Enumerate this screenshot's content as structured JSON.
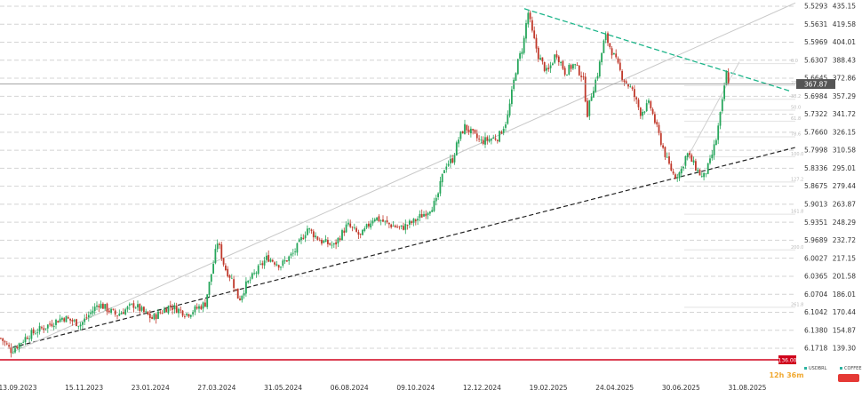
{
  "chart_data": {
    "type": "candlestick",
    "x_labels": [
      "13.09.2023",
      "15.11.2023",
      "23.01.2024",
      "27.03.2024",
      "31.05.2024",
      "06.08.2024",
      "09.10.2024",
      "12.12.2024",
      "19.02.2025",
      "24.04.2025",
      "30.06.2025",
      "31.08.2025"
    ],
    "y_ticks_right": [
      "435.15",
      "419.58",
      "404.01",
      "388.43",
      "372.86",
      "357.29",
      "341.72",
      "326.15",
      "310.58",
      "295.01",
      "279.44",
      "263.87",
      "248.29",
      "232.72",
      "217.15",
      "201.58",
      "186.01",
      "170.44",
      "154.87",
      "139.30"
    ],
    "y_ticks_left": [
      "5.5293",
      "5.5631",
      "5.5969",
      "5.6307",
      "5.6645",
      "5.6984",
      "5.7322",
      "5.7660",
      "5.7998",
      "5.8336",
      "5.8675",
      "5.9013",
      "5.9351",
      "5.9689",
      "6.0027",
      "6.0365",
      "6.0704",
      "6.1042",
      "6.1380",
      "6.1718"
    ],
    "ylim": [
      134.0,
      441.0
    ],
    "price_marker": {
      "value": 367.87,
      "label": "367.87"
    },
    "red_line": {
      "value": 136.0,
      "label": "136.00"
    },
    "legend": [
      {
        "label": "USDBRL",
        "color": "#2bb3a0"
      },
      {
        "label": "COFFEE",
        "color": "#2bb3a0"
      }
    ],
    "countdown": {
      "text": "12h 36m"
    },
    "fib_levels": [
      {
        "label": "0.0",
        "value": 385.5
      },
      {
        "label": "23.6",
        "value": 366.5
      },
      {
        "label": "38.2",
        "value": 354.7
      },
      {
        "label": "50.0",
        "value": 345.2
      },
      {
        "label": "61.8",
        "value": 335.7
      },
      {
        "label": "78.6",
        "value": 322.2
      },
      {
        "label": "100.0",
        "value": 305.0
      },
      {
        "label": "127.2",
        "value": 283.1
      },
      {
        "label": "161.8",
        "value": 255.2
      },
      {
        "label": "200.0",
        "value": 224.4
      },
      {
        "label": "261.8",
        "value": 174.7
      }
    ],
    "anchors": [
      [
        0,
        148
      ],
      [
        12,
        137
      ],
      [
        30,
        150
      ],
      [
        50,
        158
      ],
      [
        70,
        166
      ],
      [
        90,
        160
      ],
      [
        110,
        178
      ],
      [
        130,
        168
      ],
      [
        150,
        177
      ],
      [
        170,
        165
      ],
      [
        190,
        176
      ],
      [
        210,
        169
      ],
      [
        230,
        178
      ],
      [
        238,
        208
      ],
      [
        244,
        232
      ],
      [
        252,
        209
      ],
      [
        260,
        199
      ],
      [
        268,
        181
      ],
      [
        276,
        194
      ],
      [
        286,
        204
      ],
      [
        300,
        218
      ],
      [
        315,
        211
      ],
      [
        330,
        222
      ],
      [
        345,
        243
      ],
      [
        360,
        232
      ],
      [
        375,
        228
      ],
      [
        390,
        246
      ],
      [
        405,
        236
      ],
      [
        420,
        253
      ],
      [
        435,
        247
      ],
      [
        450,
        243
      ],
      [
        465,
        249
      ],
      [
        480,
        258
      ],
      [
        490,
        266
      ],
      [
        500,
        298
      ],
      [
        508,
        302
      ],
      [
        515,
        320
      ],
      [
        522,
        331
      ],
      [
        540,
        318
      ],
      [
        560,
        322
      ],
      [
        570,
        338
      ],
      [
        580,
        382
      ],
      [
        588,
        402
      ],
      [
        593,
        431
      ],
      [
        598,
        412
      ],
      [
        605,
        392
      ],
      [
        615,
        377
      ],
      [
        625,
        395
      ],
      [
        635,
        378
      ],
      [
        645,
        385
      ],
      [
        655,
        374
      ],
      [
        660,
        342
      ],
      [
        665,
        360
      ],
      [
        672,
        378
      ],
      [
        680,
        410
      ],
      [
        690,
        392
      ],
      [
        700,
        373
      ],
      [
        710,
        363
      ],
      [
        720,
        343
      ],
      [
        730,
        351
      ],
      [
        740,
        325
      ],
      [
        750,
        301
      ],
      [
        758,
        288
      ],
      [
        765,
        292
      ],
      [
        772,
        308
      ],
      [
        780,
        298
      ],
      [
        790,
        286
      ],
      [
        798,
        300
      ],
      [
        805,
        320
      ],
      [
        812,
        352
      ],
      [
        816,
        378
      ],
      [
        820,
        368
      ]
    ]
  }
}
